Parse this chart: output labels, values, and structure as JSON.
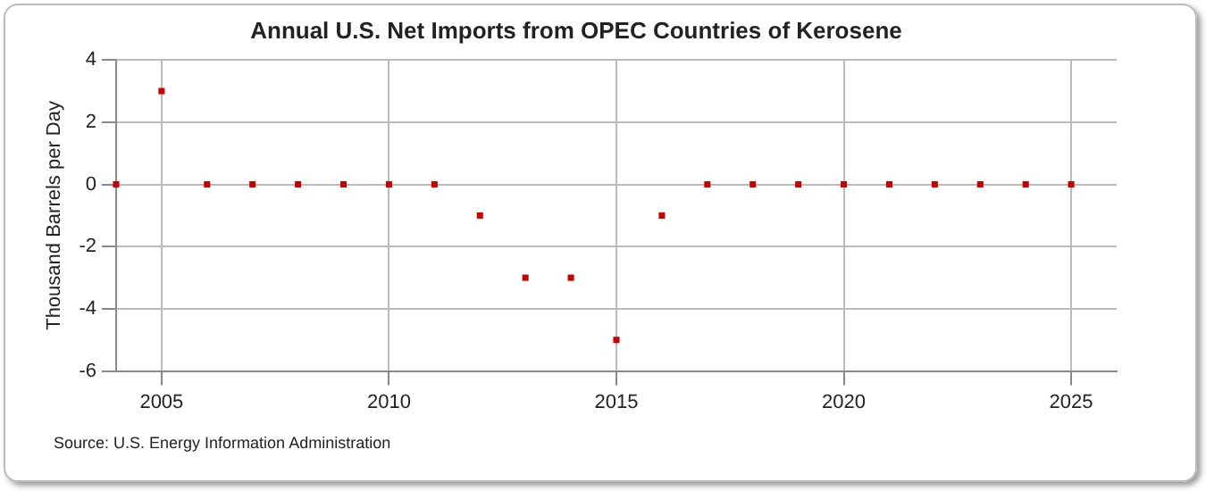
{
  "chart_data": {
    "type": "scatter",
    "title": "Annual U.S. Net Imports from OPEC Countries of Kerosene",
    "ylabel": "Thousand Barrels per Day",
    "x": [
      2004,
      2005,
      2006,
      2007,
      2008,
      2009,
      2010,
      2011,
      2012,
      2013,
      2014,
      2015,
      2016,
      2017,
      2018,
      2019,
      2020,
      2021,
      2022,
      2023,
      2024,
      2025
    ],
    "values": [
      0,
      3,
      0,
      0,
      0,
      0,
      0,
      0,
      -1,
      -3,
      -3,
      -5,
      -1,
      0,
      0,
      0,
      0,
      0,
      0,
      0,
      0,
      0
    ],
    "color": "#cc0000",
    "marker": "square",
    "grid": true,
    "xlim": [
      2004,
      2026
    ],
    "xticks": [
      2005,
      2010,
      2015,
      2020,
      2025
    ],
    "ylim": [
      -6,
      4
    ],
    "yticks": [
      -6,
      -4,
      -2,
      0,
      2,
      4
    ],
    "annotations": [
      "Source: U.S. Energy Information Administration"
    ]
  }
}
